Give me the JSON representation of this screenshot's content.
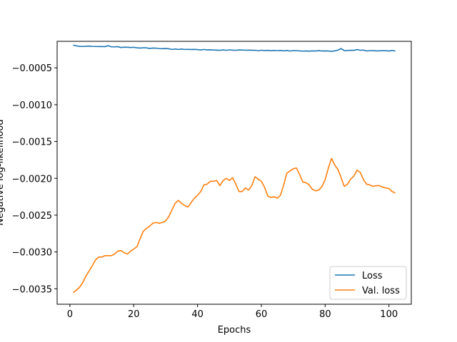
{
  "chart_data": {
    "type": "line",
    "xlabel": "Epochs",
    "ylabel": "Negative log-likelihood",
    "xlim": [
      -4,
      107
    ],
    "ylim": [
      -0.00371,
      -0.00014
    ],
    "xticks": [
      0,
      20,
      40,
      60,
      80,
      100
    ],
    "xtick_labels": [
      "0",
      "20",
      "40",
      "60",
      "80",
      "100"
    ],
    "yticks": [
      -0.0035,
      -0.003,
      -0.0025,
      -0.002,
      -0.0015,
      -0.001,
      -0.0005
    ],
    "ytick_labels": [
      "−0.0035",
      "−0.0030",
      "−0.0025",
      "−0.0020",
      "−0.0015",
      "−0.0010",
      "−0.0005"
    ],
    "legend_position": "lower-right",
    "x": [
      1,
      2,
      3,
      4,
      5,
      6,
      7,
      8,
      9,
      10,
      11,
      12,
      13,
      14,
      15,
      16,
      17,
      18,
      19,
      20,
      21,
      22,
      23,
      24,
      25,
      26,
      27,
      28,
      29,
      30,
      31,
      32,
      33,
      34,
      35,
      36,
      37,
      38,
      39,
      40,
      41,
      42,
      43,
      44,
      45,
      46,
      47,
      48,
      49,
      50,
      51,
      52,
      53,
      54,
      55,
      56,
      57,
      58,
      59,
      60,
      61,
      62,
      63,
      64,
      65,
      66,
      67,
      68,
      69,
      70,
      71,
      72,
      73,
      74,
      75,
      76,
      77,
      78,
      79,
      80,
      81,
      82,
      83,
      84,
      85,
      86,
      87,
      88,
      89,
      90,
      91,
      92,
      93,
      94,
      95,
      96,
      97,
      98,
      99,
      100,
      101,
      102
    ],
    "series": [
      {
        "name": "Loss",
        "color": "#1f77b4",
        "values": [
          -0.000192,
          -0.000201,
          -0.000208,
          -0.00021,
          -0.000207,
          -0.000205,
          -0.000209,
          -0.00021,
          -0.000211,
          -0.000211,
          -0.000212,
          -0.0002,
          -0.000214,
          -0.000215,
          -0.000212,
          -0.000224,
          -0.000219,
          -0.00022,
          -0.000224,
          -0.000221,
          -0.000228,
          -0.000231,
          -0.000227,
          -0.000229,
          -0.000236,
          -0.000231,
          -0.000233,
          -0.000238,
          -0.00024,
          -0.000237,
          -0.000241,
          -0.00025,
          -0.000245,
          -0.00025,
          -0.000245,
          -0.00025,
          -0.000249,
          -0.000251,
          -0.000249,
          -0.000252,
          -0.000258,
          -0.00025,
          -0.000257,
          -0.000255,
          -0.000258,
          -0.00026,
          -0.000262,
          -0.000257,
          -0.000262,
          -0.000256,
          -0.00026,
          -0.000262,
          -0.000257,
          -0.000258,
          -0.000261,
          -0.000259,
          -0.000262,
          -0.000261,
          -0.000268,
          -0.000261,
          -0.000265,
          -0.000263,
          -0.000268,
          -0.000264,
          -0.000267,
          -0.000264,
          -0.00027,
          -0.000264,
          -0.000272,
          -0.000266,
          -0.000267,
          -0.00027,
          -0.000273,
          -0.000271,
          -0.000274,
          -0.00027,
          -0.000271,
          -0.000266,
          -0.000271,
          -0.00027,
          -0.000271,
          -0.000276,
          -0.00027,
          -0.00026,
          -0.000238,
          -0.000266,
          -0.000265,
          -0.000262,
          -0.000263,
          -0.000252,
          -0.000261,
          -0.000259,
          -0.000271,
          -0.000267,
          -0.000266,
          -0.00027,
          -0.000269,
          -0.000267,
          -0.000268,
          -0.000271,
          -0.000264,
          -0.000272
        ]
      },
      {
        "name": "Val. loss",
        "color": "#ff7f0e",
        "values": [
          -0.003555,
          -0.00352,
          -0.00348,
          -0.00342,
          -0.00333,
          -0.00326,
          -0.00319,
          -0.00311,
          -0.00307,
          -0.00307,
          -0.00305,
          -0.00305,
          -0.00305,
          -0.00303,
          -0.00299,
          -0.00298,
          -0.00301,
          -0.00303,
          -0.00299,
          -0.00296,
          -0.00293,
          -0.00282,
          -0.00272,
          -0.00268,
          -0.00265,
          -0.00261,
          -0.0026,
          -0.00261,
          -0.0026,
          -0.00258,
          -0.00252,
          -0.00243,
          -0.00234,
          -0.0023,
          -0.00234,
          -0.00237,
          -0.00239,
          -0.00233,
          -0.00227,
          -0.00223,
          -0.00218,
          -0.00209,
          -0.00208,
          -0.00204,
          -0.00204,
          -0.00203,
          -0.0021,
          -0.00203,
          -0.002,
          -0.00203,
          -0.00199,
          -0.00208,
          -0.00218,
          -0.00218,
          -0.00213,
          -0.00216,
          -0.0021,
          -0.00198,
          -0.00201,
          -0.00204,
          -0.00212,
          -0.00224,
          -0.00226,
          -0.00225,
          -0.00227,
          -0.00223,
          -0.00209,
          -0.00193,
          -0.0019,
          -0.00187,
          -0.00186,
          -0.00195,
          -0.00205,
          -0.00206,
          -0.00209,
          -0.00215,
          -0.00217,
          -0.00216,
          -0.00211,
          -0.00202,
          -0.00186,
          -0.00173,
          -0.00182,
          -0.00188,
          -0.00199,
          -0.00211,
          -0.00208,
          -0.00201,
          -0.00197,
          -0.00189,
          -0.00192,
          -0.00202,
          -0.00208,
          -0.00209,
          -0.00211,
          -0.0021,
          -0.0021,
          -0.00212,
          -0.00213,
          -0.00214,
          -0.00218,
          -0.0022
        ]
      }
    ]
  }
}
